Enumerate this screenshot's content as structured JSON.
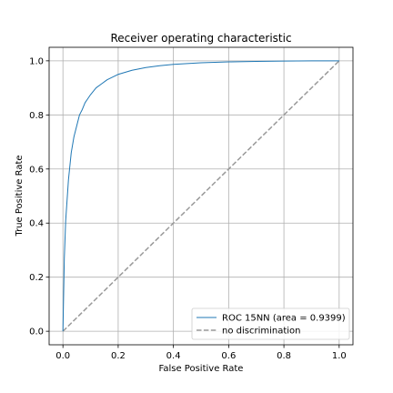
{
  "chart_data": {
    "type": "line",
    "title": "Receiver operating characteristic",
    "xlabel": "False Positive Rate",
    "ylabel": "True Positive Rate",
    "xlim": [
      -0.05,
      1.05
    ],
    "ylim": [
      -0.05,
      1.05
    ],
    "xticks": [
      "0.0",
      "0.2",
      "0.4",
      "0.6",
      "0.8",
      "1.0"
    ],
    "yticks": [
      "0.0",
      "0.2",
      "0.4",
      "0.6",
      "0.8",
      "1.0"
    ],
    "grid": true,
    "legend_position": "lower right",
    "series": [
      {
        "name": "ROC 15NN (area = 0.9399)",
        "color": "#1f77b4",
        "style": "solid",
        "x": [
          0.0,
          0.005,
          0.01,
          0.02,
          0.03,
          0.04,
          0.05,
          0.06,
          0.07,
          0.08,
          0.09,
          0.1,
          0.12,
          0.14,
          0.16,
          0.18,
          0.2,
          0.25,
          0.3,
          0.35,
          0.4,
          0.5,
          0.6,
          0.7,
          0.8,
          0.9,
          1.0
        ],
        "y": [
          0.0,
          0.27,
          0.41,
          0.56,
          0.66,
          0.72,
          0.76,
          0.8,
          0.82,
          0.845,
          0.86,
          0.875,
          0.9,
          0.915,
          0.93,
          0.94,
          0.95,
          0.965,
          0.975,
          0.982,
          0.987,
          0.993,
          0.996,
          0.998,
          0.999,
          1.0,
          1.0
        ]
      },
      {
        "name": "no discrimination",
        "color": "#999999",
        "style": "dashed",
        "x": [
          0.0,
          1.0
        ],
        "y": [
          0.0,
          1.0
        ]
      }
    ]
  }
}
